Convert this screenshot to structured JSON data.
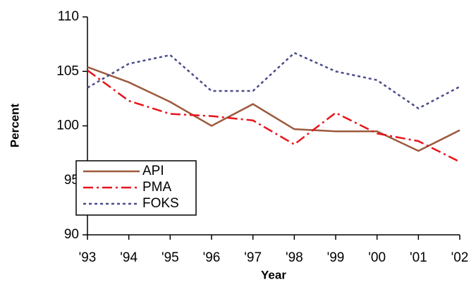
{
  "chart_data": {
    "type": "line",
    "x_label": "Year",
    "y_label": "Percent",
    "categories": [
      "'93",
      "'94",
      "'95",
      "'96",
      "'97",
      "'98",
      "'99",
      "'00",
      "'01",
      "'02"
    ],
    "series": [
      {
        "name": "API",
        "color": "#9c5a3c",
        "dash": "solid",
        "values": [
          105.4,
          104.0,
          102.2,
          100.0,
          102.0,
          99.7,
          99.5,
          99.5,
          97.7,
          99.6
        ]
      },
      {
        "name": "PMA",
        "color": "#e8141c",
        "dash": "dashdot",
        "values": [
          105.1,
          102.3,
          101.1,
          100.9,
          100.5,
          98.3,
          101.2,
          99.3,
          98.6,
          96.7
        ]
      },
      {
        "name": "FOKS",
        "color": "#4a4a8a",
        "dash": "dotted",
        "values": [
          103.5,
          105.7,
          106.5,
          103.2,
          103.2,
          106.7,
          105.0,
          104.2,
          101.6,
          103.6
        ]
      }
    ],
    "ylim": [
      90,
      110
    ],
    "yticks": [
      90,
      95,
      100,
      105,
      110
    ],
    "legend": "lower left"
  }
}
